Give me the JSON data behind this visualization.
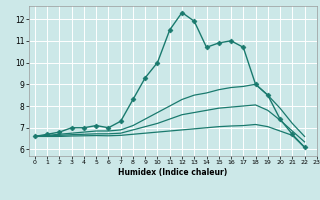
{
  "xlabel": "Humidex (Indice chaleur)",
  "bg_color": "#cce8e8",
  "grid_color": "#ffffff",
  "line_color": "#1a7a6e",
  "xlim": [
    -0.5,
    23
  ],
  "ylim": [
    5.7,
    12.6
  ],
  "yticks": [
    6,
    7,
    8,
    9,
    10,
    11,
    12
  ],
  "xticks": [
    0,
    1,
    2,
    3,
    4,
    5,
    6,
    7,
    8,
    9,
    10,
    11,
    12,
    13,
    14,
    15,
    16,
    17,
    18,
    19,
    20,
    21,
    22,
    23
  ],
  "series": [
    {
      "x": [
        0,
        1,
        2,
        3,
        4,
        5,
        6,
        7,
        8,
        9,
        10,
        11,
        12,
        13,
        14,
        15,
        16,
        17,
        18,
        19,
        20,
        21,
        22
      ],
      "y": [
        6.6,
        6.7,
        6.8,
        7.0,
        7.0,
        7.1,
        7.0,
        7.3,
        8.3,
        9.3,
        10.0,
        11.5,
        12.3,
        11.9,
        10.7,
        10.9,
        11.0,
        10.7,
        9.0,
        8.5,
        7.4,
        6.7,
        6.1
      ],
      "marker": "D",
      "markersize": 2.5,
      "linewidth": 1.0
    },
    {
      "x": [
        0,
        1,
        2,
        3,
        4,
        5,
        6,
        7,
        8,
        9,
        10,
        11,
        12,
        13,
        14,
        15,
        16,
        17,
        18,
        19,
        20,
        21,
        22
      ],
      "y": [
        6.6,
        6.65,
        6.7,
        6.75,
        6.8,
        6.85,
        6.85,
        6.9,
        7.1,
        7.4,
        7.7,
        8.0,
        8.3,
        8.5,
        8.6,
        8.75,
        8.85,
        8.9,
        9.0,
        8.5,
        7.9,
        7.2,
        6.6
      ],
      "marker": null,
      "markersize": 0,
      "linewidth": 0.9
    },
    {
      "x": [
        0,
        1,
        2,
        3,
        4,
        5,
        6,
        7,
        8,
        9,
        10,
        11,
        12,
        13,
        14,
        15,
        16,
        17,
        18,
        19,
        20,
        21,
        22
      ],
      "y": [
        6.6,
        6.62,
        6.65,
        6.68,
        6.7,
        6.72,
        6.72,
        6.75,
        6.9,
        7.05,
        7.2,
        7.4,
        7.6,
        7.7,
        7.8,
        7.9,
        7.95,
        8.0,
        8.05,
        7.8,
        7.35,
        6.85,
        6.35
      ],
      "marker": null,
      "markersize": 0,
      "linewidth": 0.9
    },
    {
      "x": [
        0,
        1,
        2,
        3,
        4,
        5,
        6,
        7,
        8,
        9,
        10,
        11,
        12,
        13,
        14,
        15,
        16,
        17,
        18,
        19,
        20,
        21,
        22
      ],
      "y": [
        6.6,
        6.6,
        6.6,
        6.62,
        6.63,
        6.64,
        6.63,
        6.65,
        6.7,
        6.75,
        6.8,
        6.85,
        6.9,
        6.95,
        7.0,
        7.05,
        7.08,
        7.1,
        7.15,
        7.05,
        6.85,
        6.65,
        6.1
      ],
      "marker": null,
      "markersize": 0,
      "linewidth": 0.9
    }
  ]
}
